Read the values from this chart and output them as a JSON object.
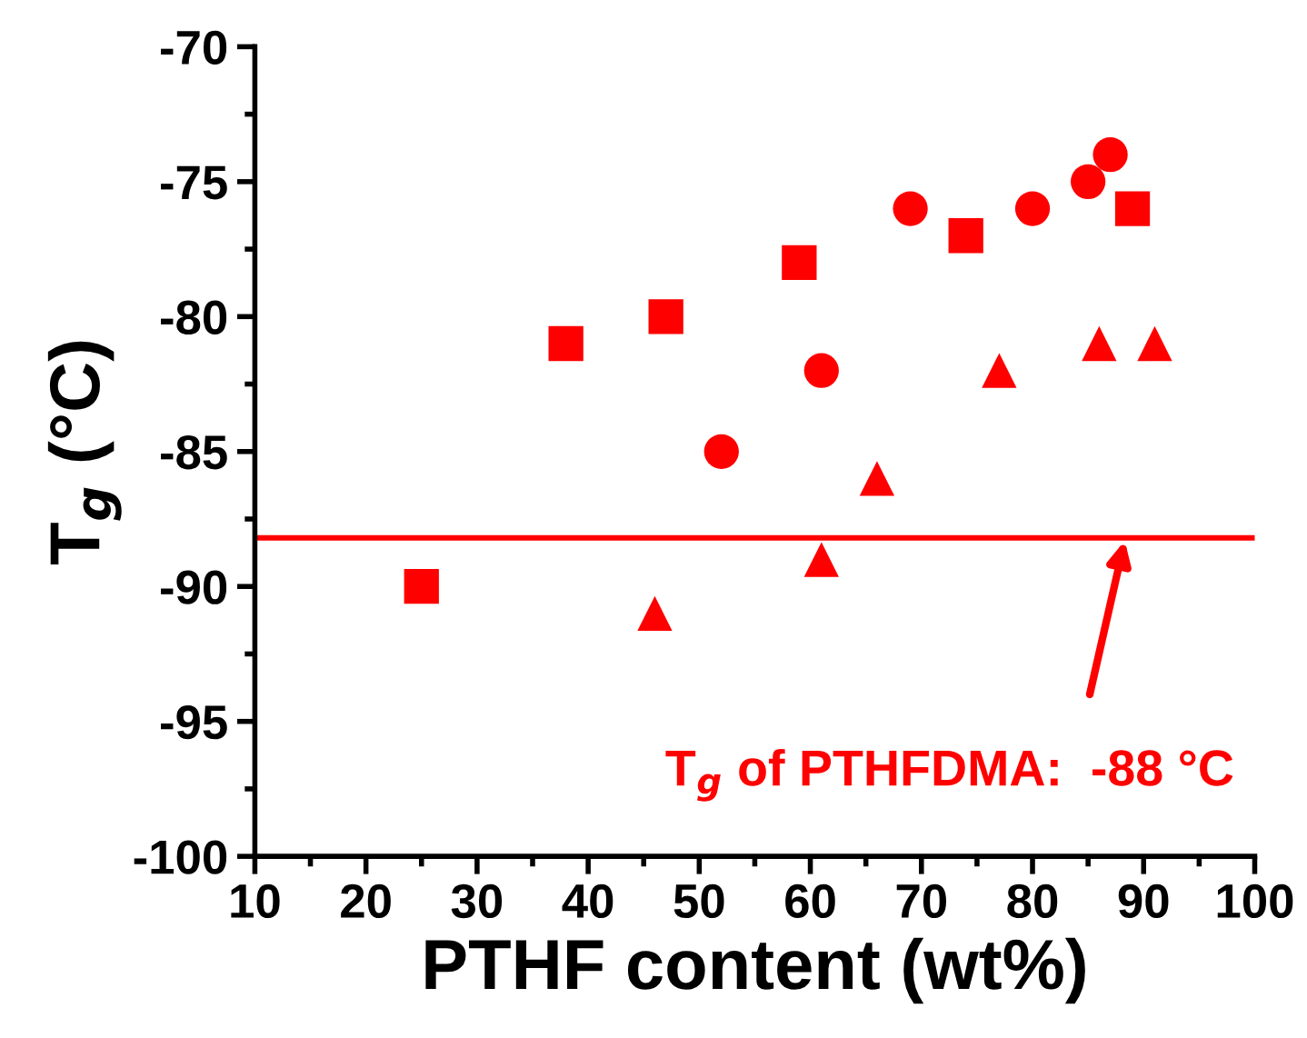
{
  "chart_data": {
    "type": "scatter",
    "xlabel": "PTHF content (wt%)",
    "ylabel": "T$_{g}$ (°C)",
    "xlim": [
      10,
      100
    ],
    "xticks": [
      10,
      20,
      30,
      40,
      50,
      60,
      70,
      80,
      90,
      100
    ],
    "ylim": [
      -100,
      -70
    ],
    "yticks": [
      -100,
      -95,
      -90,
      -85,
      -80,
      -75,
      -70
    ],
    "grid": false,
    "legend": false,
    "series": [
      {
        "color": "#ff0000",
        "marker": "square",
        "x": [
          25,
          38,
          47,
          59,
          74,
          89
        ],
        "values": [
          -90,
          -81,
          -80,
          -78,
          -77,
          -76
        ]
      },
      {
        "color": "#ff0000",
        "marker": "circle",
        "x": [
          52,
          61,
          69,
          80,
          85,
          87
        ],
        "values": [
          -85,
          -82,
          -76,
          -76,
          -75,
          -74
        ]
      },
      {
        "color": "#ff0000",
        "marker": "triangle",
        "x": [
          46,
          61,
          66,
          77,
          86,
          91
        ],
        "values": [
          -91,
          -89,
          -86,
          -82,
          -81,
          -81
        ]
      }
    ],
    "ref_lines": [
      {
        "axis": "y",
        "value": -88.2,
        "color": "#ff0000",
        "line_style": "solid"
      }
    ],
    "annotations": [
      "T$_{g}$ of PTHFDMA:  -88 °C"
    ]
  }
}
